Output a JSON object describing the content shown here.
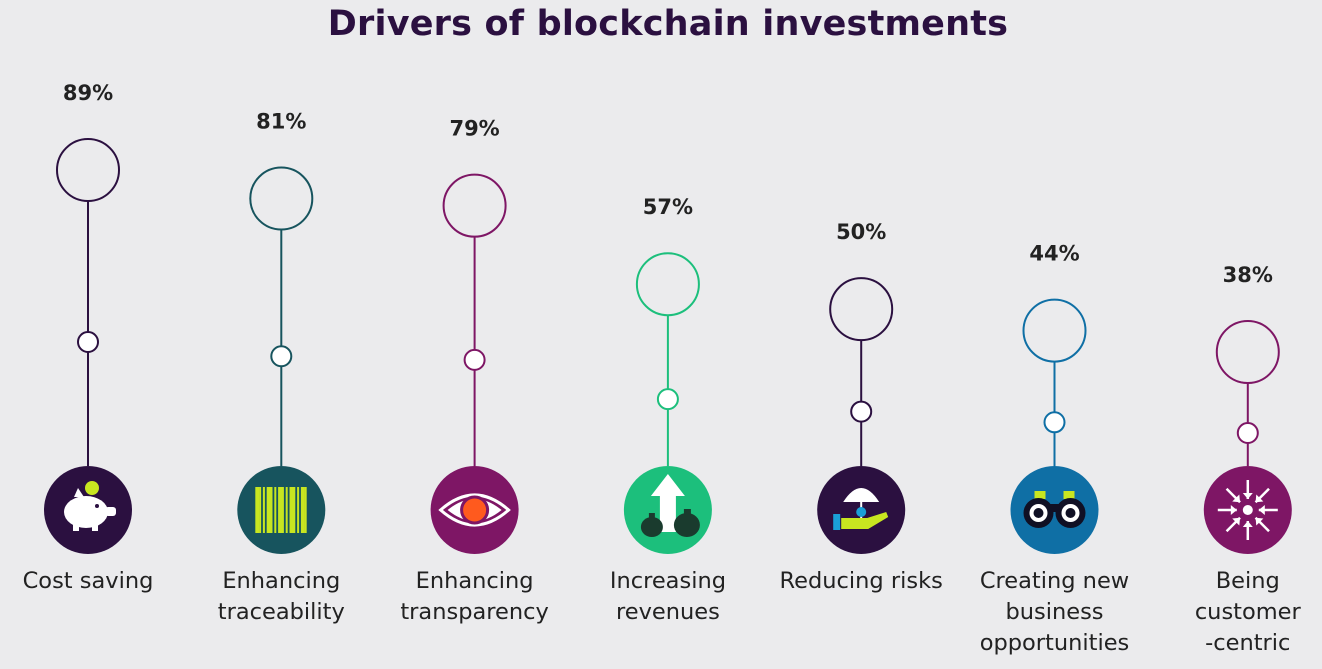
{
  "chart_data": {
    "type": "bar",
    "title": "Drivers of blockchain investments",
    "categories": [
      "Cost saving",
      "Enhancing traceability",
      "Enhancing transparency",
      "Increasing revenues",
      "Reducing risks",
      "Creating new business opportunities",
      "Being customer -centric"
    ],
    "category_lines": [
      [
        "Cost saving"
      ],
      [
        "Enhancing",
        "traceability"
      ],
      [
        "Enhancing",
        "transparency"
      ],
      [
        "Increasing",
        "revenues"
      ],
      [
        "Reducing risks"
      ],
      [
        "Creating new",
        "business",
        "opportunities"
      ],
      [
        "Being",
        "customer",
        "-centric"
      ]
    ],
    "values": [
      89,
      81,
      79,
      57,
      50,
      44,
      38
    ],
    "value_labels": [
      "89%",
      "81%",
      "79%",
      "57%",
      "50%",
      "44%",
      "38%"
    ],
    "unit": "%",
    "colors": [
      "#2b1040",
      "#17545e",
      "#7e1665",
      "#1cbf7c",
      "#2b1040",
      "#0f6fa5",
      "#7e1665"
    ],
    "icons": [
      "piggy-bank-icon",
      "barcode-icon",
      "eye-icon",
      "money-bags-up-arrow-icon",
      "umbrella-hand-icon",
      "binoculars-icon",
      "inward-arrows-icon"
    ],
    "accent_colors": {
      "lime": "#c8e620",
      "orange": "#ff5a1e",
      "white": "#ffffff"
    },
    "grid": false,
    "legend": "none"
  }
}
